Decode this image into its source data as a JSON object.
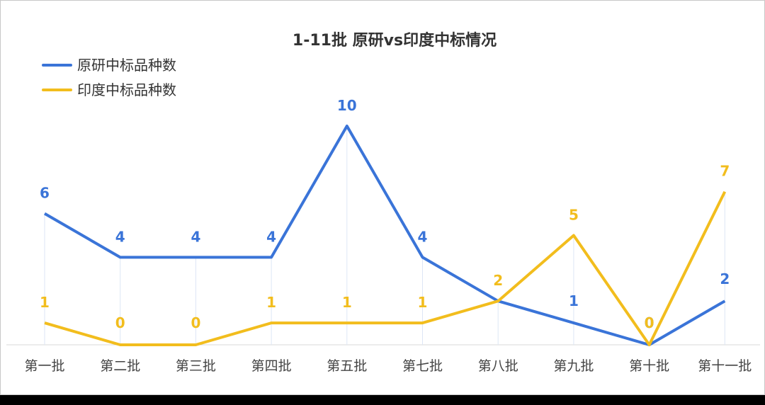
{
  "chart_data": {
    "type": "line",
    "title": "1-11批 原研vs印度中标情况",
    "categories": [
      "第一批",
      "第二批",
      "第三批",
      "第四批",
      "第五批",
      "第七批",
      "第八批",
      "第九批",
      "第十批",
      "第十一批"
    ],
    "series": [
      {
        "name": "原研中标品种数",
        "color": "#3a74d8",
        "values": [
          6,
          4,
          4,
          4,
          10,
          4,
          2,
          1,
          0,
          2
        ]
      },
      {
        "name": "印度中标品种数",
        "color": "#f2bd1d",
        "values": [
          1,
          0,
          0,
          1,
          1,
          1,
          2,
          5,
          0,
          7
        ]
      }
    ],
    "ylim": [
      0,
      10
    ],
    "grid": false,
    "legend": "top-left",
    "xlabel": "",
    "ylabel": ""
  }
}
